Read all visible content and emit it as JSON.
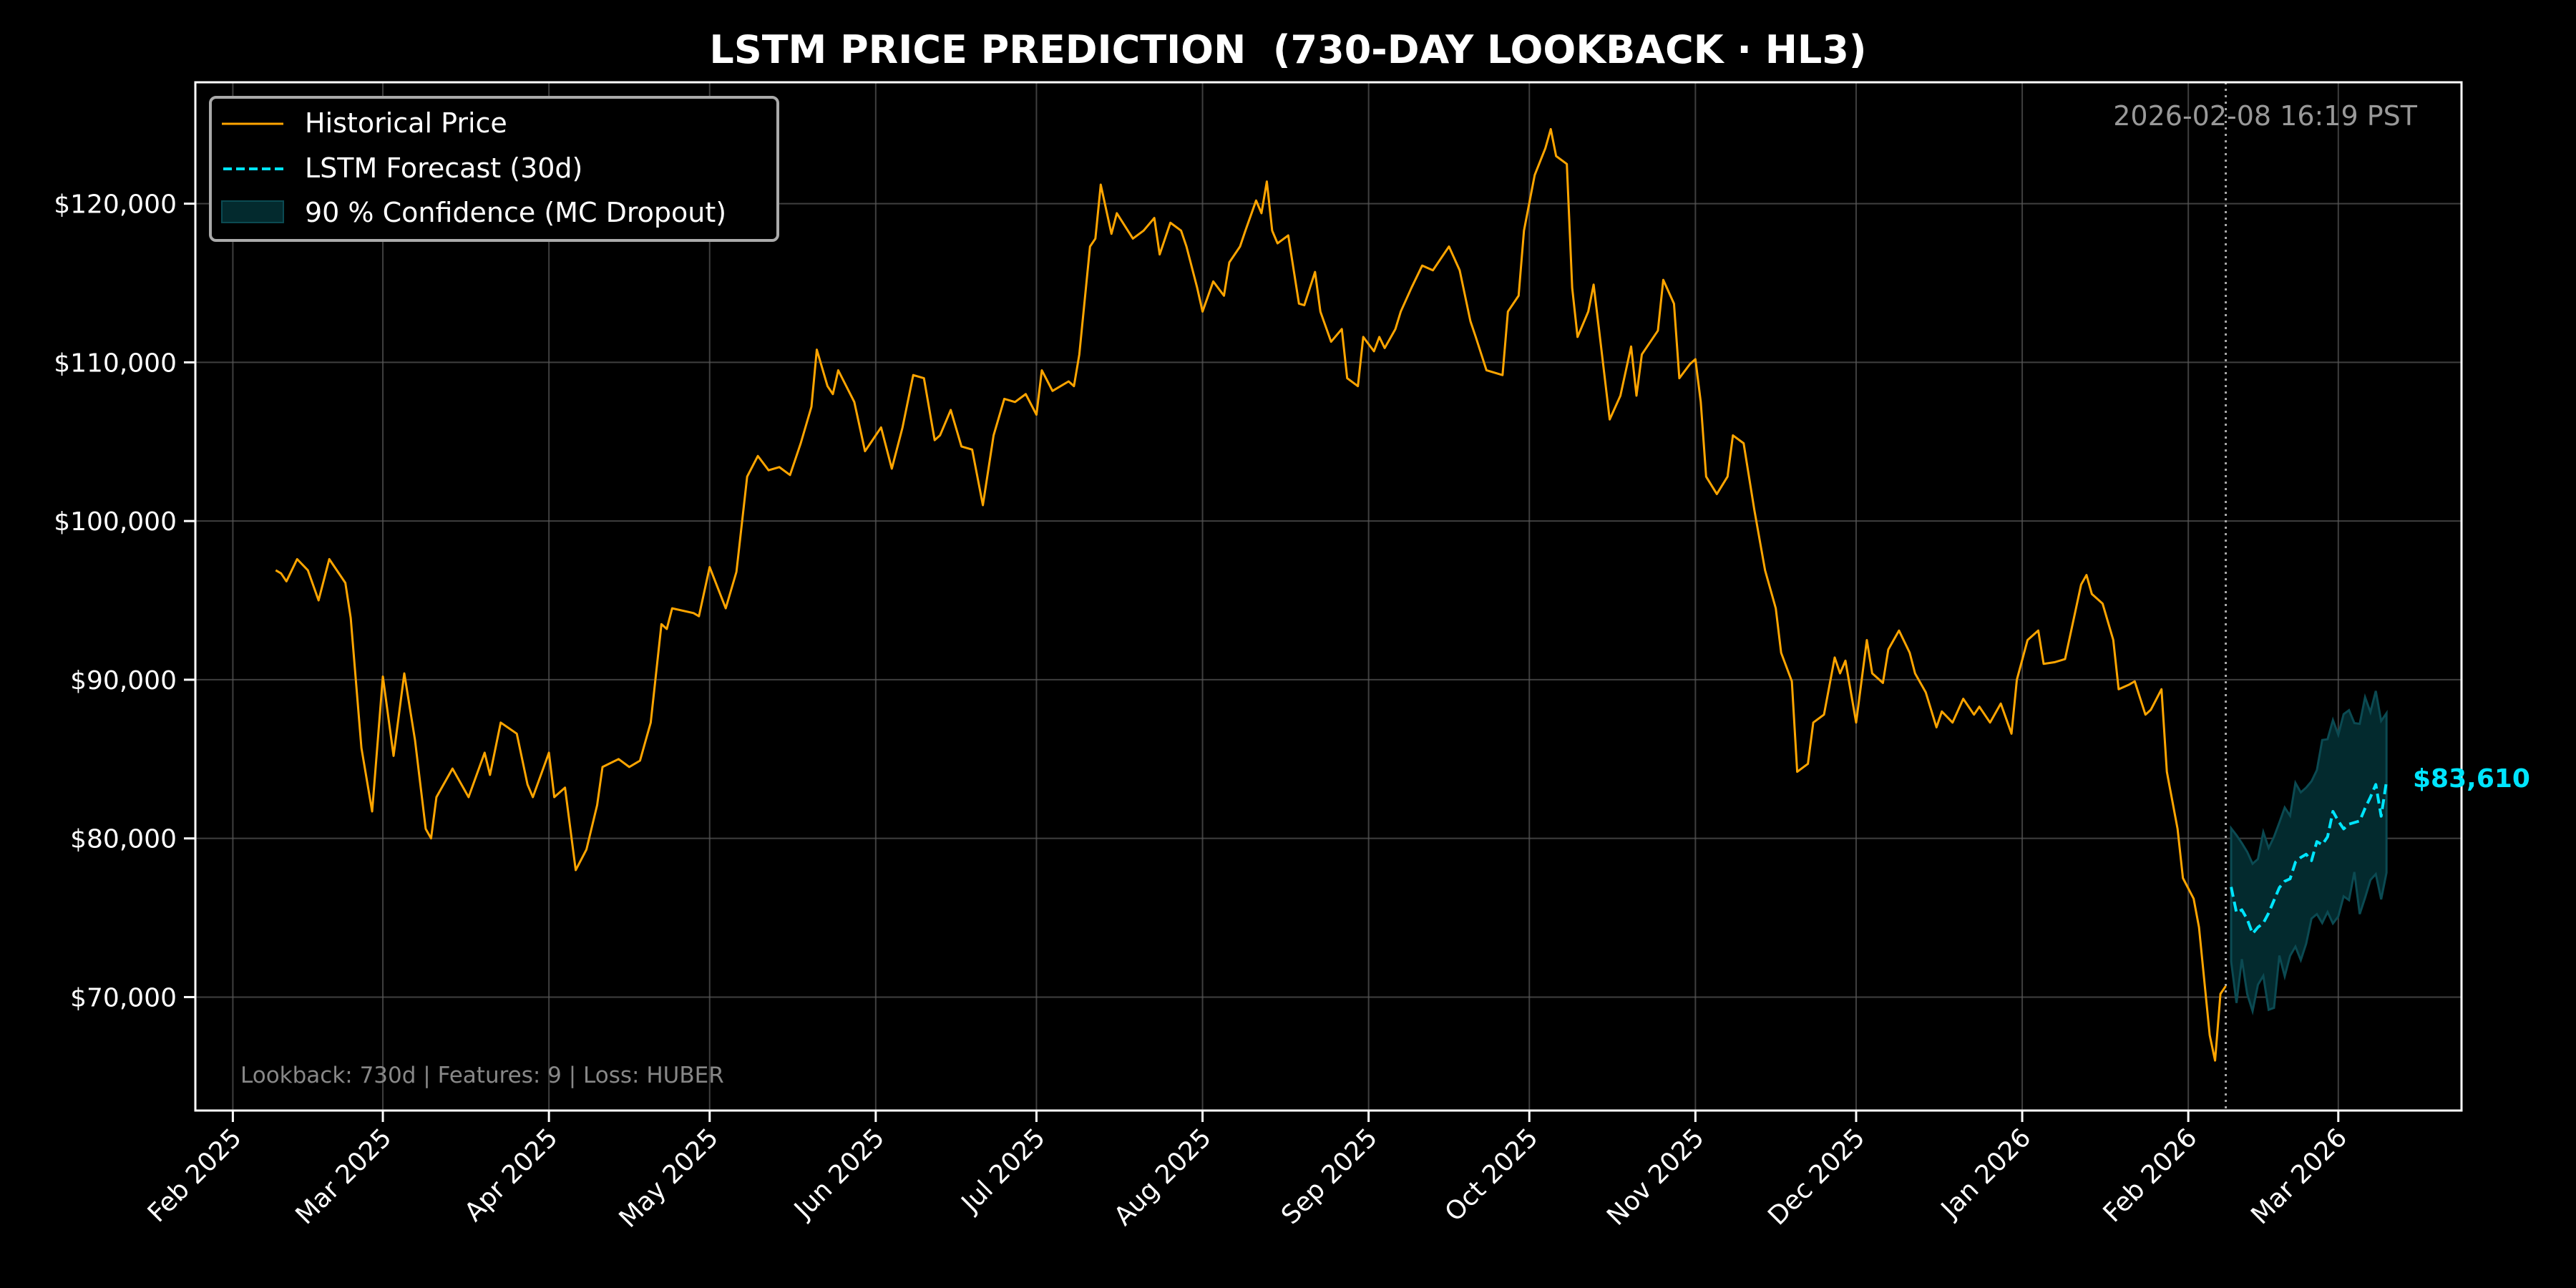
{
  "chart_data": {
    "type": "line",
    "title": "LSTM PRICE PREDICTION  (730-DAY LOOKBACK · HL3)",
    "xlabel": "",
    "ylabel": "",
    "xlim": [
      "2025-01-25",
      "2026-03-24"
    ],
    "ylim": [
      62850,
      127650
    ],
    "grid": true,
    "legend_position": "top-left",
    "x_ticks": [
      {
        "date": "2025-02-01",
        "label": "Feb 2025"
      },
      {
        "date": "2025-03-01",
        "label": "Mar 2025"
      },
      {
        "date": "2025-04-01",
        "label": "Apr 2025"
      },
      {
        "date": "2025-05-01",
        "label": "May 2025"
      },
      {
        "date": "2025-06-01",
        "label": "Jun 2025"
      },
      {
        "date": "2025-07-01",
        "label": "Jul 2025"
      },
      {
        "date": "2025-08-01",
        "label": "Aug 2025"
      },
      {
        "date": "2025-09-01",
        "label": "Sep 2025"
      },
      {
        "date": "2025-10-01",
        "label": "Oct 2025"
      },
      {
        "date": "2025-11-01",
        "label": "Nov 2025"
      },
      {
        "date": "2025-12-01",
        "label": "Dec 2025"
      },
      {
        "date": "2026-01-01",
        "label": "Jan 2026"
      },
      {
        "date": "2026-02-01",
        "label": "Feb 2026"
      },
      {
        "date": "2026-03-01",
        "label": "Mar 2026"
      }
    ],
    "y_ticks": [
      {
        "value": 70000,
        "label": "$70,000"
      },
      {
        "value": 80000,
        "label": "$80,000"
      },
      {
        "value": 90000,
        "label": "$90,000"
      },
      {
        "value": 100000,
        "label": "$100,000"
      },
      {
        "value": 110000,
        "label": "$110,000"
      },
      {
        "value": 120000,
        "label": "$120,000"
      }
    ],
    "forecast_start_marker": "2026-02-08",
    "series": [
      {
        "name": "Historical Price",
        "color": "#FFA500",
        "style": "solid",
        "x": [
          "2025-02-09",
          "2025-02-10",
          "2025-02-11",
          "2025-02-13",
          "2025-02-15",
          "2025-02-17",
          "2025-02-19",
          "2025-02-22",
          "2025-02-23",
          "2025-02-25",
          "2025-02-27",
          "2025-03-01",
          "2025-03-03",
          "2025-03-05",
          "2025-03-07",
          "2025-03-09",
          "2025-03-10",
          "2025-03-11",
          "2025-03-14",
          "2025-03-17",
          "2025-03-20",
          "2025-03-21",
          "2025-03-23",
          "2025-03-26",
          "2025-03-28",
          "2025-03-29",
          "2025-04-01",
          "2025-04-02",
          "2025-04-04",
          "2025-04-06",
          "2025-04-08",
          "2025-04-10",
          "2025-04-11",
          "2025-04-14",
          "2025-04-16",
          "2025-04-18",
          "2025-04-20",
          "2025-04-22",
          "2025-04-23",
          "2025-04-24",
          "2025-04-28",
          "2025-04-29",
          "2025-05-01",
          "2025-05-04",
          "2025-05-06",
          "2025-05-08",
          "2025-05-10",
          "2025-05-12",
          "2025-05-14",
          "2025-05-16",
          "2025-05-18",
          "2025-05-20",
          "2025-05-21",
          "2025-05-23",
          "2025-05-24",
          "2025-05-25",
          "2025-05-28",
          "2025-05-30",
          "2025-05-31",
          "2025-06-02",
          "2025-06-04",
          "2025-06-06",
          "2025-06-08",
          "2025-06-10",
          "2025-06-12",
          "2025-06-13",
          "2025-06-15",
          "2025-06-17",
          "2025-06-19",
          "2025-06-21",
          "2025-06-23",
          "2025-06-25",
          "2025-06-27",
          "2025-06-29",
          "2025-07-01",
          "2025-07-02",
          "2025-07-04",
          "2025-07-07",
          "2025-07-08",
          "2025-07-09",
          "2025-07-11",
          "2025-07-12",
          "2025-07-13",
          "2025-07-15",
          "2025-07-16",
          "2025-07-19",
          "2025-07-21",
          "2025-07-23",
          "2025-07-24",
          "2025-07-26",
          "2025-07-28",
          "2025-07-29",
          "2025-07-31",
          "2025-08-01",
          "2025-08-03",
          "2025-08-05",
          "2025-08-06",
          "2025-08-08",
          "2025-08-09",
          "2025-08-11",
          "2025-08-12",
          "2025-08-13",
          "2025-08-14",
          "2025-08-15",
          "2025-08-17",
          "2025-08-19",
          "2025-08-20",
          "2025-08-22",
          "2025-08-23",
          "2025-08-25",
          "2025-08-27",
          "2025-08-28",
          "2025-08-30",
          "2025-08-31",
          "2025-09-02",
          "2025-09-03",
          "2025-09-04",
          "2025-09-06",
          "2025-09-07",
          "2025-09-09",
          "2025-09-11",
          "2025-09-13",
          "2025-09-14",
          "2025-09-16",
          "2025-09-18",
          "2025-09-20",
          "2025-09-21",
          "2025-09-23",
          "2025-09-26",
          "2025-09-27",
          "2025-09-29",
          "2025-09-30",
          "2025-10-02",
          "2025-10-04",
          "2025-10-05",
          "2025-10-06",
          "2025-10-08",
          "2025-10-09",
          "2025-10-10",
          "2025-10-12",
          "2025-10-13",
          "2025-10-14",
          "2025-10-16",
          "2025-10-18",
          "2025-10-20",
          "2025-10-21",
          "2025-10-22",
          "2025-10-25",
          "2025-10-26",
          "2025-10-28",
          "2025-10-29",
          "2025-10-31",
          "2025-11-01",
          "2025-11-02",
          "2025-11-03",
          "2025-11-05",
          "2025-11-07",
          "2025-11-08",
          "2025-11-10",
          "2025-11-12",
          "2025-11-14",
          "2025-11-16",
          "2025-11-17",
          "2025-11-19",
          "2025-11-20",
          "2025-11-22",
          "2025-11-23",
          "2025-11-25",
          "2025-11-27",
          "2025-11-28",
          "2025-11-29",
          "2025-12-01",
          "2025-12-03",
          "2025-12-04",
          "2025-12-06",
          "2025-12-07",
          "2025-12-09",
          "2025-12-11",
          "2025-12-12",
          "2025-12-14",
          "2025-12-16",
          "2025-12-17",
          "2025-12-19",
          "2025-12-21",
          "2025-12-23",
          "2025-12-24",
          "2025-12-26",
          "2025-12-28",
          "2025-12-30",
          "2025-12-31",
          "2026-01-02",
          "2026-01-04",
          "2026-01-05",
          "2026-01-07",
          "2026-01-09",
          "2026-01-12",
          "2026-01-13",
          "2026-01-14",
          "2026-01-16",
          "2026-01-18",
          "2026-01-19",
          "2026-01-21",
          "2026-01-22",
          "2026-01-24",
          "2026-01-25",
          "2026-01-27",
          "2026-01-28",
          "2026-01-30",
          "2026-01-31",
          "2026-02-02",
          "2026-02-03",
          "2026-02-05",
          "2026-02-06",
          "2026-02-07",
          "2026-02-08"
        ],
        "y": [
          96900,
          96700,
          96200,
          97600,
          96900,
          95000,
          97600,
          96100,
          93900,
          85700,
          81700,
          90200,
          85200,
          90400,
          86200,
          80600,
          80000,
          82600,
          84400,
          82600,
          85400,
          84000,
          87300,
          86600,
          83400,
          82600,
          85400,
          82600,
          83200,
          78000,
          79300,
          82100,
          84500,
          85000,
          84500,
          84900,
          87300,
          93500,
          93200,
          94500,
          94200,
          94000,
          97100,
          94500,
          96800,
          102800,
          104100,
          103200,
          103400,
          102900,
          104900,
          107200,
          110800,
          108500,
          108000,
          109500,
          107500,
          104400,
          104900,
          105900,
          103300,
          105900,
          109200,
          109000,
          105100,
          105400,
          107000,
          104700,
          104500,
          101000,
          105400,
          107700,
          107500,
          108000,
          106700,
          109500,
          108200,
          108800,
          108500,
          110500,
          117300,
          117800,
          121200,
          118100,
          119400,
          117800,
          118300,
          119100,
          116800,
          118800,
          118300,
          117300,
          114700,
          113200,
          115100,
          114200,
          116300,
          117300,
          118300,
          120200,
          119400,
          121400,
          118300,
          117500,
          118000,
          113700,
          113600,
          115700,
          113200,
          111300,
          112100,
          109000,
          108500,
          111600,
          110700,
          111600,
          110900,
          112100,
          113200,
          114700,
          116100,
          115800,
          116300,
          117300,
          115800,
          112600,
          111600,
          109500,
          109200,
          113200,
          114200,
          118300,
          121800,
          123500,
          124700,
          123000,
          122500,
          114700,
          111600,
          113200,
          114900,
          112100,
          106400,
          107900,
          111000,
          107900,
          110500,
          112000,
          115200,
          113700,
          109000,
          109900,
          110200,
          107500,
          102800,
          101700,
          102800,
          105400,
          104900,
          100700,
          96900,
          94500,
          91700,
          89900,
          84200,
          84700,
          87300,
          87800,
          91400,
          90400,
          91200,
          87300,
          92500,
          90400,
          89800,
          91900,
          93100,
          91700,
          90400,
          89200,
          87000,
          88000,
          87300,
          88800,
          87800,
          88300,
          87300,
          88500,
          86600,
          90000,
          92500,
          93100,
          91000,
          91100,
          91300,
          96000,
          96600,
          95400,
          94800,
          92500,
          89400,
          89700,
          89900,
          87800,
          88100,
          89400,
          84200,
          80600,
          77500,
          76200,
          74400,
          67600,
          66000,
          70200,
          70700
        ]
      },
      {
        "name": "LSTM Forecast (30d)",
        "color": "#00E5FF",
        "style": "dashed",
        "x": [
          "2026-02-09",
          "2026-02-10",
          "2026-02-11",
          "2026-02-12",
          "2026-02-13",
          "2026-02-14",
          "2026-02-15",
          "2026-02-16",
          "2026-02-17",
          "2026-02-18",
          "2026-02-19",
          "2026-02-20",
          "2026-02-21",
          "2026-02-22",
          "2026-02-23",
          "2026-02-24",
          "2026-02-25",
          "2026-02-26",
          "2026-02-27",
          "2026-02-28",
          "2026-03-01",
          "2026-03-02",
          "2026-03-03",
          "2026-03-04",
          "2026-03-05",
          "2026-03-06",
          "2026-03-07",
          "2026-03-08",
          "2026-03-09",
          "2026-03-10"
        ],
        "y": [
          76940,
          75320,
          75500,
          74900,
          74000,
          74400,
          74660,
          75300,
          76100,
          76900,
          77300,
          77450,
          78500,
          78800,
          79000,
          78600,
          79800,
          79600,
          80100,
          81700,
          81100,
          80600,
          80900,
          81000,
          81100,
          81900,
          82600,
          83400,
          81400,
          83610
        ],
        "ci_lower": [
          72240,
          69630,
          72390,
          70190,
          69120,
          70780,
          71340,
          69200,
          69320,
          72620,
          71310,
          72600,
          73180,
          72330,
          73360,
          74950,
          75230,
          74670,
          75360,
          74640,
          75080,
          76350,
          76110,
          77880,
          75230,
          76260,
          77380,
          77750,
          76160,
          77840
        ],
        "ci_upper": [
          80640,
          80200,
          79700,
          79150,
          78400,
          78700,
          80400,
          79400,
          80100,
          81000,
          81950,
          81430,
          83500,
          82900,
          83200,
          83600,
          84300,
          86200,
          86250,
          87460,
          86530,
          87830,
          88080,
          87270,
          87220,
          88900,
          87960,
          89290,
          87400,
          87890
        ]
      }
    ],
    "band": {
      "name": "90 % Confidence (MC Dropout)",
      "fill": "#032A2E",
      "edge": "#0B4A52"
    },
    "annotations": {
      "final_price": "$83,610",
      "timestamp": "2026-02-08 16:19 PST",
      "footnote": "Lookback: 730d | Features: 9 | Loss: HUBER"
    },
    "colors": {
      "background": "#000000",
      "axes": "#FFFFFF",
      "grid": "#5A5A5A",
      "muted_text": "#999999"
    }
  }
}
